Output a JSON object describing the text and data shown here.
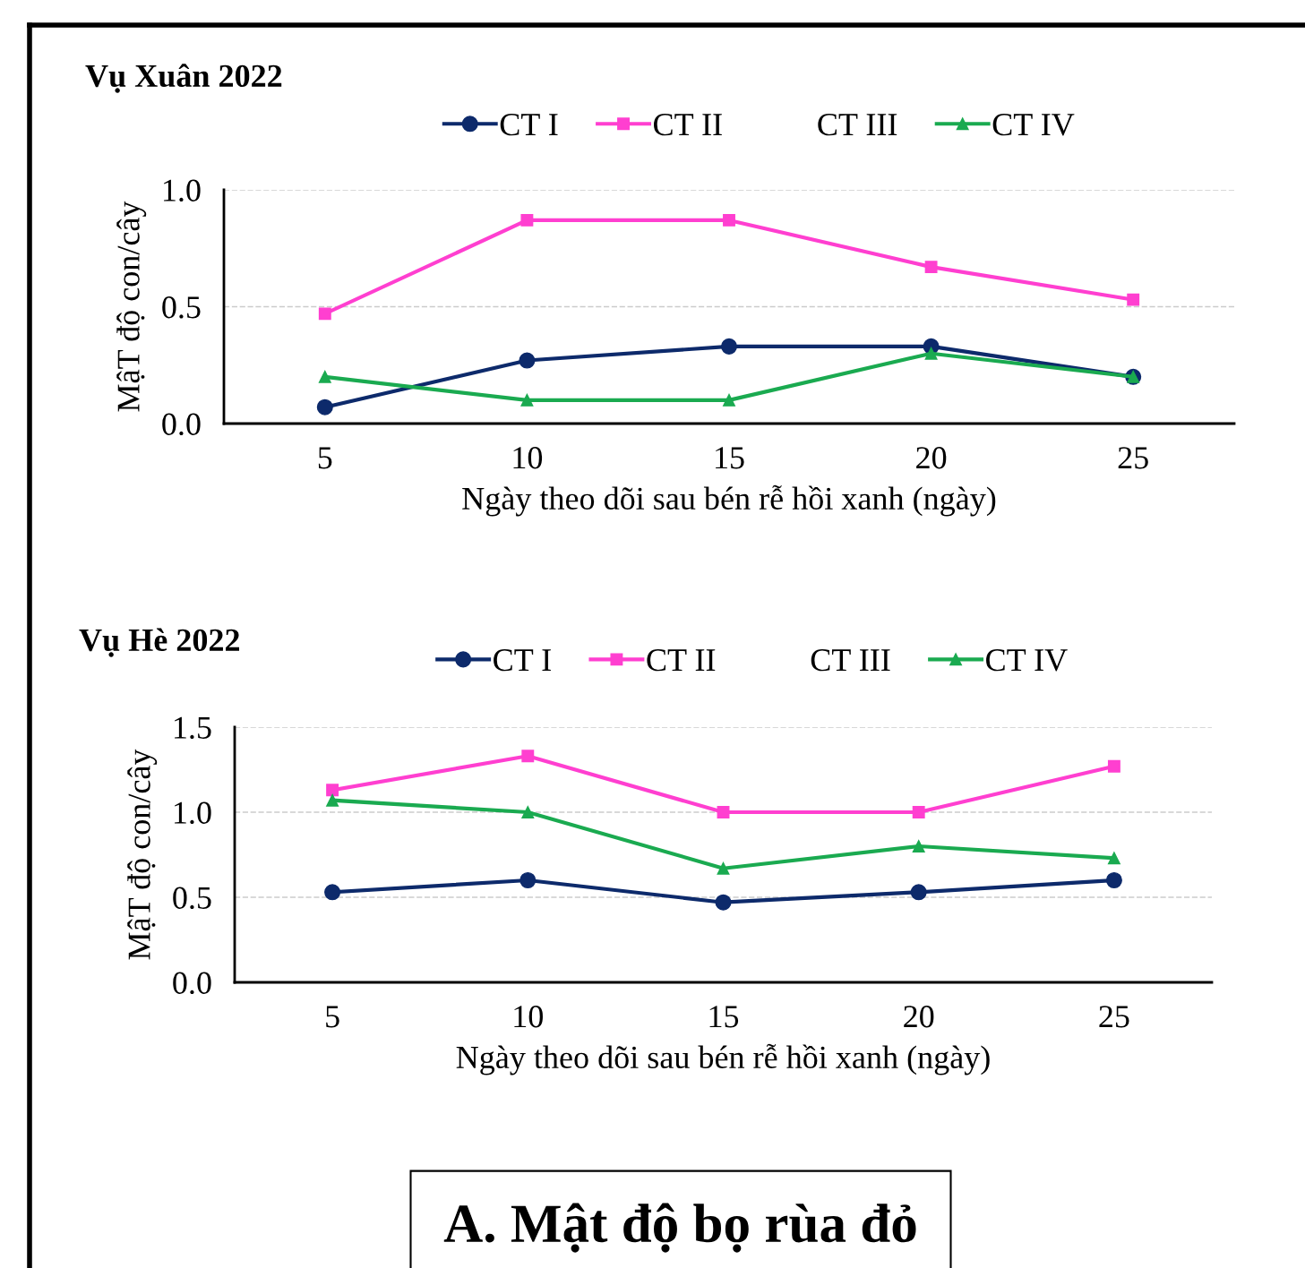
{
  "chart_data": [
    {
      "type": "line",
      "title": "Vụ Xuân 2022",
      "xlabel": "Ngày theo dõi sau bén rễ hồi xanh (ngày)",
      "ylabel": "MậT độ con/cây",
      "categories": [
        "5",
        "10",
        "15",
        "20",
        "25"
      ],
      "series": [
        {
          "name": "CT I",
          "color": "#0d2a6b",
          "marker": "circle",
          "values": [
            0.07,
            0.27,
            0.33,
            0.33,
            0.2
          ]
        },
        {
          "name": "CT II",
          "color": "#ff3fd0",
          "marker": "square",
          "values": [
            0.47,
            0.87,
            0.87,
            0.67,
            0.53
          ]
        },
        {
          "name": "CT III",
          "marker": "none",
          "values": [
            null,
            null,
            null,
            null,
            null
          ]
        },
        {
          "name": "CT IV",
          "color": "#1aaa50",
          "marker": "triangle",
          "values": [
            0.2,
            0.1,
            0.1,
            0.3,
            0.2
          ]
        }
      ],
      "ylim": [
        0,
        1.0
      ],
      "yticks": [
        {
          "value": 0,
          "label": "0.0"
        },
        {
          "value": 0.5,
          "label": "0.5"
        },
        {
          "value": 1.0,
          "label": "1.0"
        }
      ],
      "grid": "y",
      "legend": "top",
      "line_style": "solid"
    },
    {
      "type": "line",
      "title": "Vụ Hè 2022",
      "xlabel": "Ngày theo dõi sau bén rễ hồi xanh (ngày)",
      "ylabel": "MậT độ con/cây",
      "categories": [
        "5",
        "10",
        "15",
        "20",
        "25"
      ],
      "series": [
        {
          "name": "CT I",
          "color": "#0d2a6b",
          "marker": "circle",
          "values": [
            0.53,
            0.6,
            0.47,
            0.53,
            0.6
          ]
        },
        {
          "name": "CT II",
          "color": "#ff3fd0",
          "marker": "square",
          "values": [
            1.13,
            1.33,
            1.0,
            1.0,
            1.27
          ]
        },
        {
          "name": "CT III",
          "marker": "none",
          "values": [
            null,
            null,
            null,
            null,
            null
          ]
        },
        {
          "name": "CT IV",
          "color": "#1aaa50",
          "marker": "triangle",
          "values": [
            1.07,
            1.0,
            0.67,
            0.8,
            0.73
          ]
        }
      ],
      "ylim": [
        0,
        1.5
      ],
      "yticks": [
        {
          "value": 0,
          "label": "0.0"
        },
        {
          "value": 0.5,
          "label": "0.5"
        },
        {
          "value": 1.0,
          "label": "1.0"
        },
        {
          "value": 1.5,
          "label": "1.5"
        }
      ],
      "grid": "y",
      "legend": "top",
      "line_style": "solid",
      "annotations": [
        "A. Mật độ bọ rùa đỏ"
      ]
    }
  ]
}
